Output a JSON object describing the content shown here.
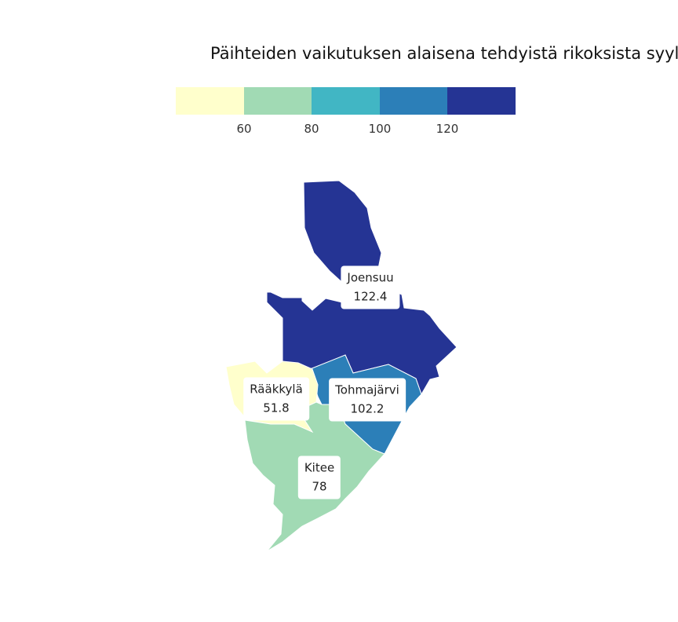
{
  "title": "Päihteiden vaikutuksen alaisena tehdyistä rikoksista syylli",
  "legend": {
    "bins": [
      {
        "color": "#ffffcc"
      },
      {
        "color": "#a1dab4"
      },
      {
        "color": "#41b6c4"
      },
      {
        "color": "#2c7fb8"
      },
      {
        "color": "#253494"
      }
    ],
    "ticks": [
      "60",
      "80",
      "100",
      "120"
    ]
  },
  "regions": [
    {
      "name": "Joensuu",
      "value": "122.4",
      "color": "#253494"
    },
    {
      "name": "Rääkkylä",
      "value": "51.8",
      "color": "#ffffcc"
    },
    {
      "name": "Tohmajärvi",
      "value": "102.2",
      "color": "#2c7fb8"
    },
    {
      "name": "Kitee",
      "value": "78",
      "color": "#a1dab4"
    }
  ]
}
